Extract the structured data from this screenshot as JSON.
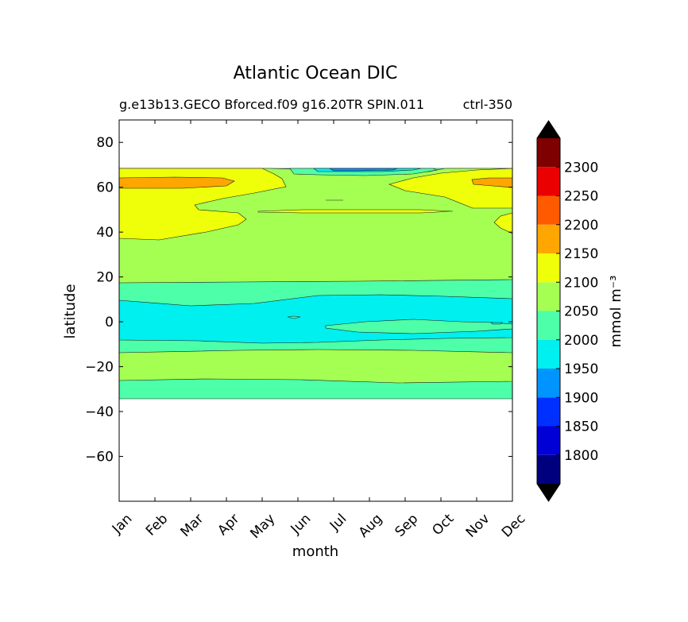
{
  "chart_data": {
    "type": "heatmap",
    "title": "Atlantic Ocean DIC",
    "subtitle_left": "g.e13b13.GECO Bforced.f09 g16.20TR SPIN.011",
    "subtitle_right": "ctrl-350",
    "xlabel": "month",
    "ylabel": "latitude",
    "x_ticks": [
      "Jan",
      "Feb",
      "Mar",
      "Apr",
      "May",
      "Jun",
      "Jul",
      "Aug",
      "Sep",
      "Oct",
      "Nov",
      "Dec"
    ],
    "y_ticks": [
      80,
      60,
      40,
      20,
      0,
      -20,
      -40,
      -60
    ],
    "ylim": [
      -80,
      90
    ],
    "data_lat_range": [
      -34,
      68
    ],
    "colorbar": {
      "label": "mmol m⁻³",
      "levels": [
        1750,
        1800,
        1850,
        1900,
        1950,
        2000,
        2050,
        2100,
        2150,
        2200,
        2250,
        2300,
        2350
      ],
      "tick_labels": [
        "1800",
        "1850",
        "1900",
        "1950",
        "2000",
        "2050",
        "2100",
        "2150",
        "2200",
        "2250",
        "2300"
      ],
      "colors": [
        "#00007f",
        "#0000d4",
        "#0030ff",
        "#0094ff",
        "#00efef",
        "#4dffa8",
        "#a4ff52",
        "#eeff09",
        "#ffa700",
        "#ff5a00",
        "#ea0000",
        "#7f0000"
      ],
      "under_color": "#000000",
      "over_color": "#000000"
    },
    "bands": [
      {
        "level": "2000-2050",
        "lat_min": -34,
        "lat_max": -26
      },
      {
        "level": "2050-2100",
        "lat_min": -26,
        "lat_max": -13
      },
      {
        "level": "2000-2050",
        "lat_min": -13,
        "lat_max": -8
      },
      {
        "level": "1950-2000",
        "lat_min": -8,
        "lat_max": 10
      },
      {
        "level": "2000-2050",
        "lat_min": 10,
        "lat_max": 18
      },
      {
        "level": "2050-2100",
        "lat_min": 18,
        "lat_max": 38
      },
      {
        "level": "2100-2150",
        "lat_min": 38,
        "lat_max": 56
      },
      {
        "level": "2150-2200",
        "lat_min": 59,
        "lat_max": 64
      },
      {
        "level": "1900-1950",
        "lat_min": 66,
        "lat_max": 68
      }
    ]
  }
}
